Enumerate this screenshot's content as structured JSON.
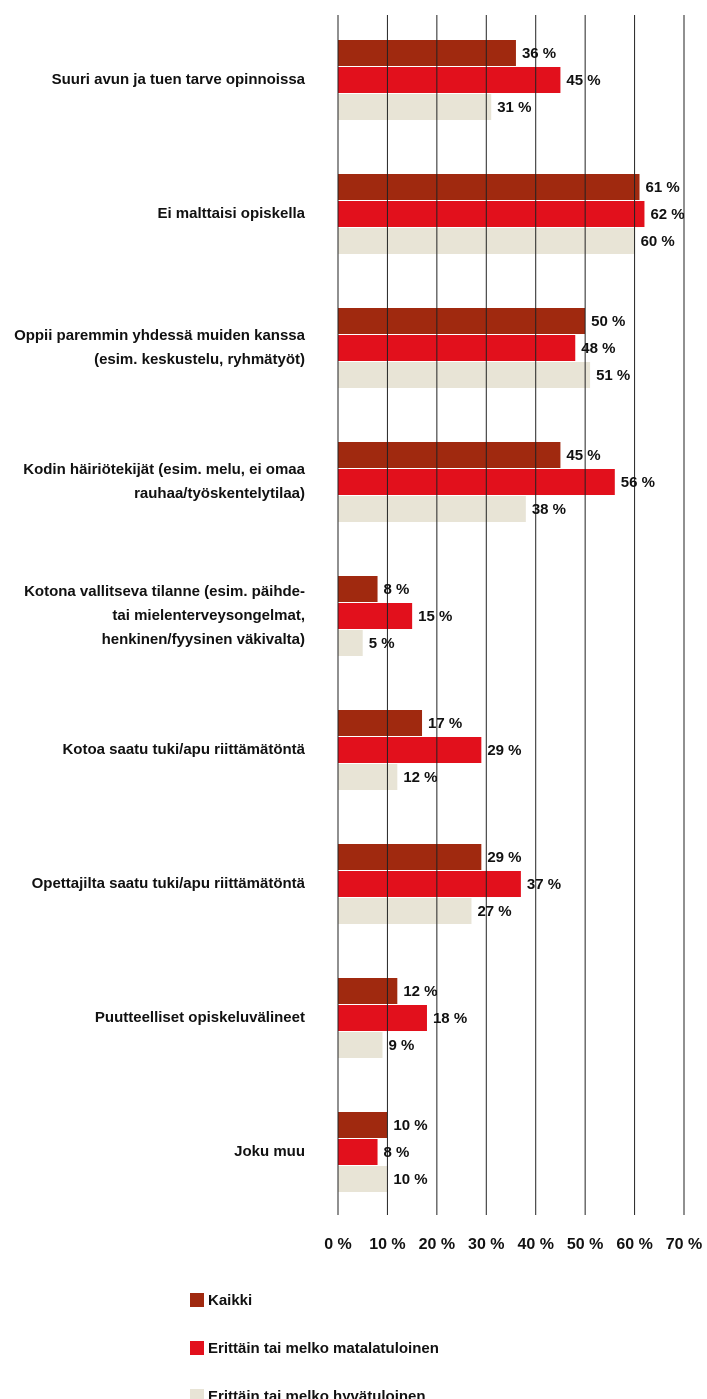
{
  "chart_data": {
    "type": "bar",
    "orientation": "horizontal",
    "categories": [
      "Suuri avun ja tuen tarve opinnoissa",
      "Ei malttaisi opiskella",
      "Oppii paremmin yhdessä muiden kanssa (esim. keskustelu, ryhmätyöt)",
      "Kodin häiriötekijät (esim. melu, ei omaa rauhaa/työskentelytilaa)",
      "Kotona vallitseva tilanne (esim. päihde- tai mielenterveysongelmat, henkinen/fyysinen väkivalta)",
      "Kotoa saatu tuki/apu riittämätöntä",
      "Opettajilta saatu tuki/apu riittämätöntä",
      "Puutteelliset opiskeluvälineet",
      "Joku muu"
    ],
    "series": [
      {
        "name": "Kaikki",
        "color": "#a0290f",
        "values": [
          36,
          61,
          50,
          45,
          8,
          17,
          29,
          12,
          10
        ],
        "value_labels": [
          "36 %",
          "61 %",
          "50 %",
          "45 %",
          "8 %",
          "17 %",
          "29 %",
          "12 %",
          "10 %"
        ]
      },
      {
        "name": "Erittäin tai melko matalatuloinen",
        "color": "#e2101c",
        "values": [
          45,
          62,
          48,
          56,
          15,
          29,
          37,
          18,
          8
        ],
        "value_labels": [
          "45 %",
          "62 %",
          "48 %",
          "56 %",
          "15 %",
          "29 %",
          "37 %",
          "18 %",
          "8 %"
        ]
      },
      {
        "name": "Erittäin tai melko hyvätuloinen",
        "color": "#e8e4d6",
        "values": [
          31,
          60,
          51,
          38,
          5,
          12,
          27,
          9,
          10
        ],
        "value_labels": [
          "31 %",
          "60 %",
          "51 %",
          "38 %",
          "5 %",
          "12 %",
          "27 %",
          "9 %",
          "10 %"
        ]
      }
    ],
    "xlim": [
      0,
      70
    ],
    "xticks": [
      {
        "value": 0,
        "label": "0 %"
      },
      {
        "value": 10,
        "label": "10 %"
      },
      {
        "value": 20,
        "label": "20 %"
      },
      {
        "value": 30,
        "label": "30 %"
      },
      {
        "value": 40,
        "label": "40 %"
      },
      {
        "value": 50,
        "label": "50 %"
      },
      {
        "value": 60,
        "label": "60 %"
      },
      {
        "value": 70,
        "label": "70 %"
      }
    ],
    "grid": true,
    "legend": "bottom"
  }
}
